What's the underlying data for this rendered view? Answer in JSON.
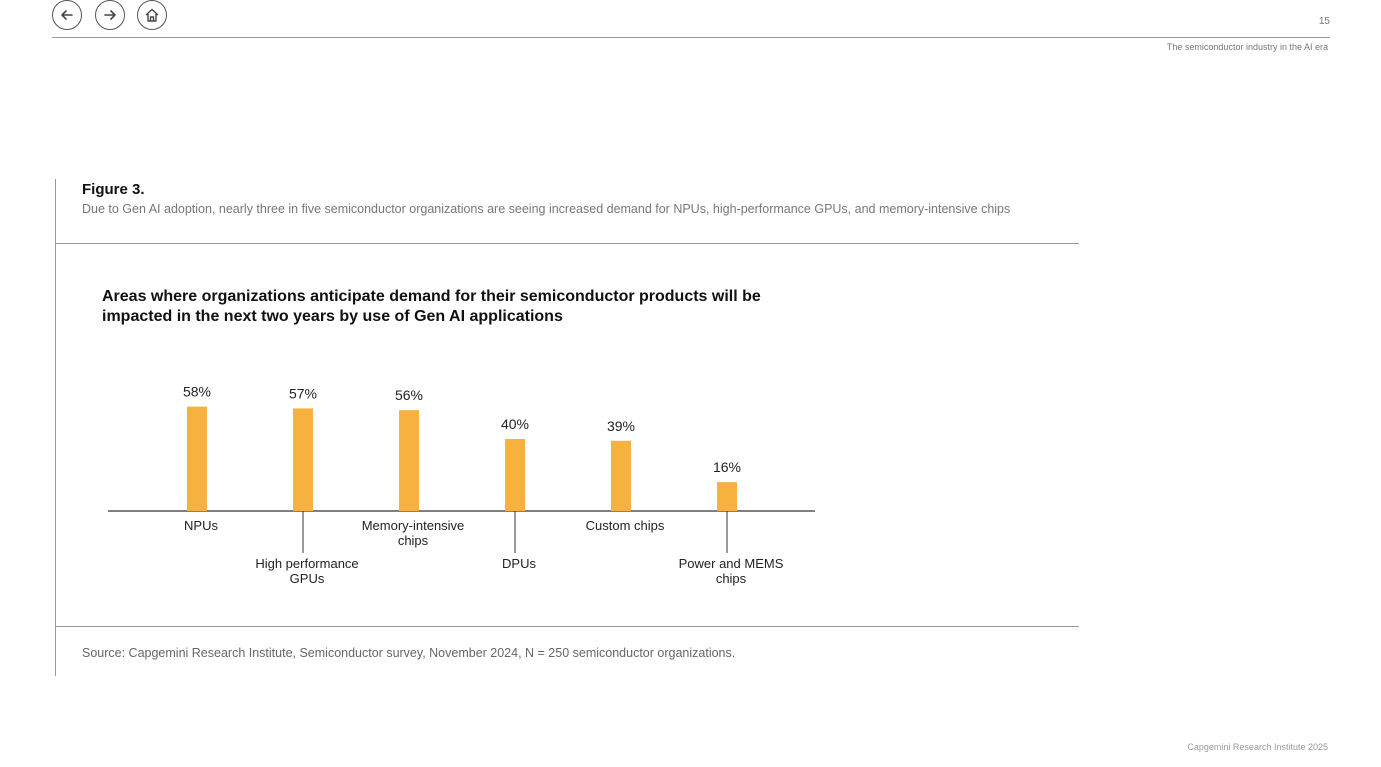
{
  "nav": {
    "back": "back",
    "forward": "forward",
    "home": "home"
  },
  "page_number": "15",
  "header_title": "The semiconductor industry in the AI era",
  "figure": {
    "label": "Figure 3.",
    "caption": "Due to Gen AI adoption, nearly three in five semiconductor organizations are seeing increased demand for NPUs, high-performance GPUs, and memory-intensive chips"
  },
  "chart_data": {
    "type": "bar",
    "title": "Areas where organizations anticipate demand for their semiconductor products will be impacted in the next two years by use of Gen AI applications",
    "categories": [
      [
        "NPUs"
      ],
      [
        "High performance",
        "GPUs"
      ],
      [
        "Memory-intensive",
        "chips"
      ],
      [
        "DPUs"
      ],
      [
        "Custom chips"
      ],
      [
        "Power and MEMS",
        "chips"
      ]
    ],
    "values": [
      58,
      57,
      56,
      40,
      39,
      16
    ],
    "data_labels": [
      "58%",
      "57%",
      "56%",
      "40%",
      "39%",
      "16%"
    ],
    "unit": "%",
    "bar_color": "#F7B13E",
    "label_positions": [
      "high",
      "low",
      "high",
      "low",
      "high",
      "low"
    ]
  },
  "source": "Source: Capgemini Research Institute, Semiconductor survey, November 2024, N = 250 semiconductor organizations.",
  "footer": "Capgemini Research Institute 2025"
}
